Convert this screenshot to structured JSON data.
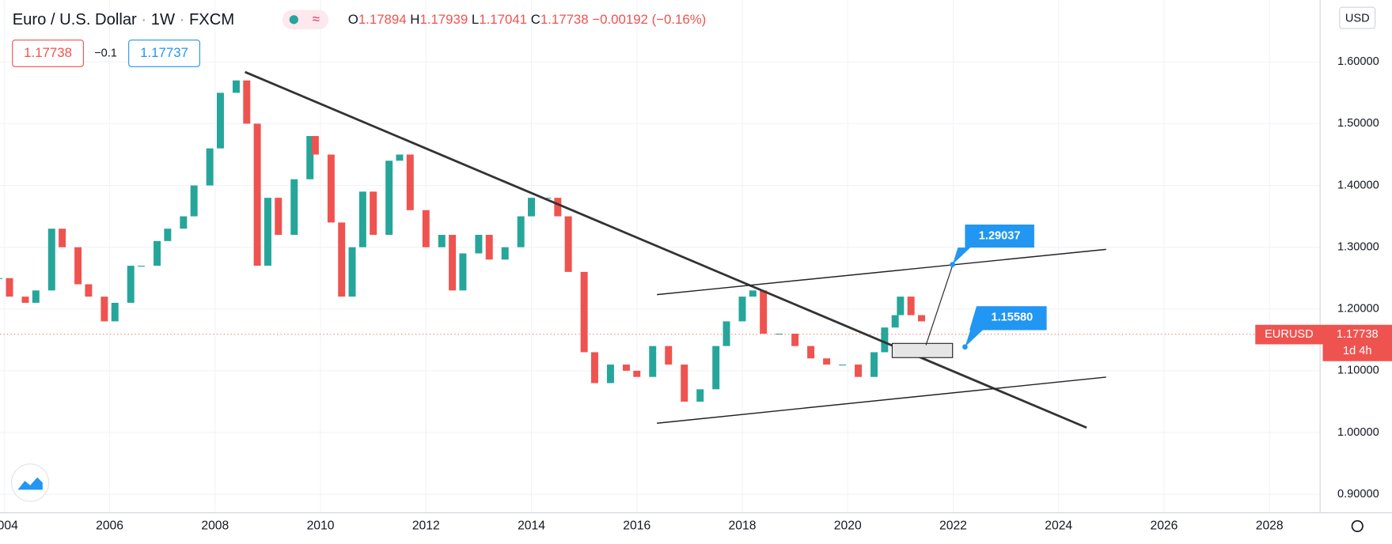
{
  "header": {
    "symbol": "Euro / U.S. Dollar",
    "interval": "1W",
    "exchange": "FXCM",
    "ohlc": [
      {
        "label": "O",
        "value": "1.17894"
      },
      {
        "label": "H",
        "value": "1.17939"
      },
      {
        "label": "L",
        "value": "1.17041"
      },
      {
        "label": "C",
        "value": "1.17738"
      }
    ],
    "change": "−0.00192 (−0.16%)",
    "bid": "1.17738",
    "spread": "−0.1",
    "ask": "1.17737"
  },
  "price_axis": {
    "currency": "USD",
    "ylim": [
      0.87,
      1.7
    ],
    "ticks": [
      {
        "value": 0.9,
        "label": "0.90000"
      },
      {
        "value": 1.0,
        "label": "1.00000"
      },
      {
        "value": 1.1,
        "label": "1.10000"
      },
      {
        "value": 1.2,
        "label": "1.20000"
      },
      {
        "value": 1.3,
        "label": "1.30000"
      },
      {
        "value": 1.4,
        "label": "1.40000"
      },
      {
        "value": 1.5,
        "label": "1.50000"
      },
      {
        "value": 1.6,
        "label": "1.60000"
      }
    ]
  },
  "time_axis": {
    "xlim": [
      2003.92,
      2028.96
    ],
    "ticks": [
      2004,
      2006,
      2008,
      2010,
      2012,
      2014,
      2016,
      2018,
      2020,
      2022,
      2024,
      2026,
      2028
    ]
  },
  "last_price": {
    "symbol": "EURUSD",
    "value": 1.17738,
    "label": "1.17738",
    "countdown": "1d 4h"
  },
  "callouts": [
    {
      "label": "1.29037"
    },
    {
      "label": "1.15580"
    }
  ],
  "price_series": {
    "x": [
      2003.9,
      2004.1,
      2004.4,
      2004.6,
      2004.9,
      2005.1,
      2005.4,
      2005.6,
      2005.9,
      2006.1,
      2006.4,
      2006.6,
      2006.9,
      2007.1,
      2007.4,
      2007.6,
      2007.9,
      2008.1,
      2008.4,
      2008.6,
      2008.8,
      2009.0,
      2009.2,
      2009.5,
      2009.8,
      2009.9,
      2010.2,
      2010.4,
      2010.6,
      2010.8,
      2011.0,
      2011.3,
      2011.5,
      2011.7,
      2012.0,
      2012.3,
      2012.5,
      2012.7,
      2013.0,
      2013.2,
      2013.5,
      2013.8,
      2014.0,
      2014.3,
      2014.5,
      2014.7,
      2015.0,
      2015.2,
      2015.5,
      2015.8,
      2016.0,
      2016.3,
      2016.6,
      2016.9,
      2017.2,
      2017.5,
      2017.7,
      2018.0,
      2018.2,
      2018.4,
      2018.7,
      2019.0,
      2019.3,
      2019.6,
      2019.9,
      2020.2,
      2020.5,
      2020.7,
      2020.9,
      2021.0,
      2021.2,
      2021.4
    ],
    "values": [
      1.25,
      1.22,
      1.21,
      1.23,
      1.33,
      1.3,
      1.24,
      1.22,
      1.18,
      1.21,
      1.27,
      1.27,
      1.31,
      1.33,
      1.35,
      1.4,
      1.46,
      1.55,
      1.57,
      1.5,
      1.27,
      1.38,
      1.32,
      1.41,
      1.48,
      1.45,
      1.34,
      1.22,
      1.3,
      1.39,
      1.32,
      1.44,
      1.45,
      1.36,
      1.3,
      1.32,
      1.23,
      1.29,
      1.32,
      1.28,
      1.3,
      1.35,
      1.38,
      1.38,
      1.35,
      1.26,
      1.13,
      1.08,
      1.11,
      1.1,
      1.09,
      1.14,
      1.11,
      1.05,
      1.07,
      1.14,
      1.18,
      1.22,
      1.23,
      1.16,
      1.16,
      1.14,
      1.12,
      1.11,
      1.11,
      1.09,
      1.13,
      1.17,
      1.19,
      1.22,
      1.19,
      1.18
    ]
  }
}
